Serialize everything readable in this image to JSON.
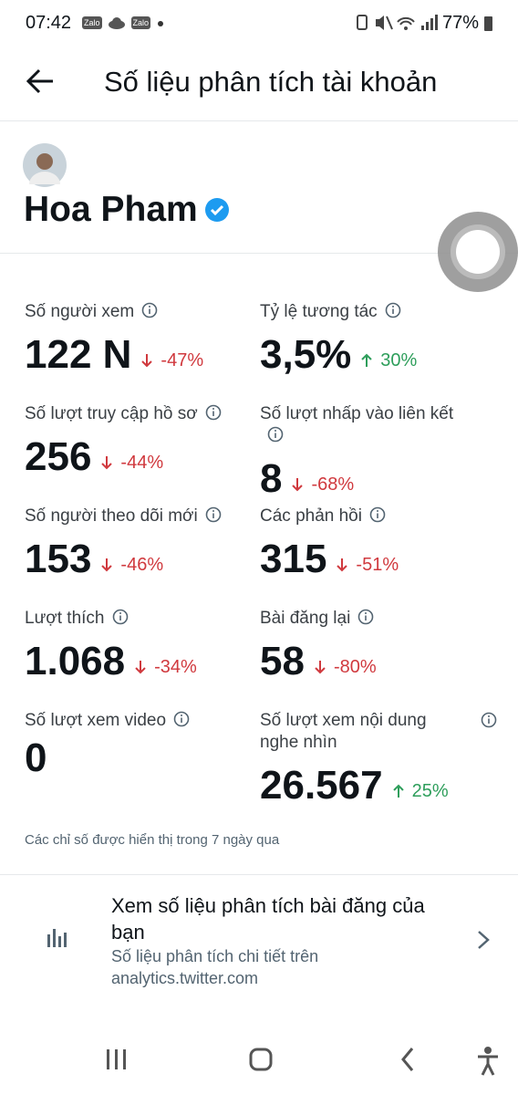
{
  "status_bar": {
    "time": "07:42",
    "apps": [
      "Zalo",
      "Zalo"
    ],
    "battery": "77%"
  },
  "header": {
    "title": "Số liệu phân tích tài khoản"
  },
  "profile": {
    "name": "Hoa Pham"
  },
  "metrics": [
    {
      "label": "Số người xem",
      "value": "122 N",
      "change": "-47%"
    },
    {
      "label": "Tỷ lệ tương tác",
      "value": "3,5%",
      "change": "30%"
    },
    {
      "label": "Số lượt truy cập hồ sơ",
      "value": "256",
      "change": "-44%"
    },
    {
      "label": "Số lượt nhấp vào liên kết",
      "value": "8",
      "change": "-68%"
    },
    {
      "label": "Số người theo dõi mới",
      "value": "153",
      "change": "-46%"
    },
    {
      "label": "Các phản hồi",
      "value": "315",
      "change": "-51%"
    },
    {
      "label": "Lượt thích",
      "value": "1.068",
      "change": "-34%"
    },
    {
      "label": "Bài đăng lại",
      "value": "58",
      "change": "-80%"
    },
    {
      "label": "Số lượt xem video",
      "value": "0"
    },
    {
      "label": "Số lượt xem nội dung nghe nhìn",
      "value": "26.567",
      "change": "25%"
    }
  ],
  "note": "Các chỉ số được hiển thị trong 7 ngày qua",
  "link_card": {
    "title": "Xem số liệu phân tích bài đăng của bạn",
    "subtitle": "Số liệu phân tích chi tiết trên analytics.twitter.com"
  }
}
